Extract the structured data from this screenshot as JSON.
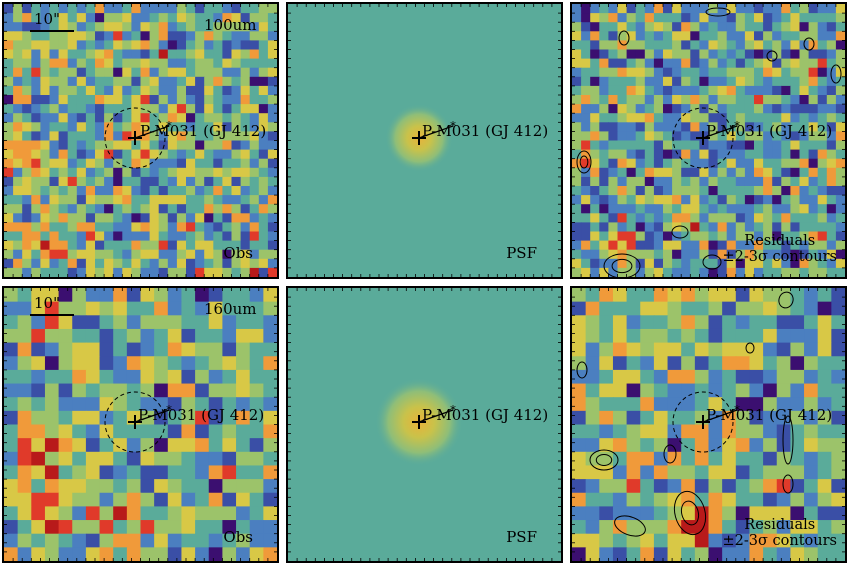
{
  "scale_bar": "10\"",
  "source_label": "P-M031 (GJ 412)",
  "rows": [
    {
      "band": "100um",
      "grid": 30,
      "panels": [
        {
          "kind": "obs",
          "label": "Obs"
        },
        {
          "kind": "psf",
          "label": "PSF"
        },
        {
          "kind": "residual",
          "label_line1": "Residuals",
          "label_line2": "±2-3σ contours"
        }
      ]
    },
    {
      "band": "160um",
      "grid": 20,
      "panels": [
        {
          "kind": "obs",
          "label": "Obs"
        },
        {
          "kind": "psf",
          "label": "PSF"
        },
        {
          "kind": "residual",
          "label_line1": "Residuals",
          "label_line2": "±2-3σ contours"
        }
      ]
    }
  ],
  "colormap": [
    "#3b0f70",
    "#3a4fa6",
    "#4b7fc0",
    "#5aab9a",
    "#9cc36a",
    "#d8c846",
    "#f09a3a",
    "#e03a2a",
    "#b81a1a"
  ]
}
